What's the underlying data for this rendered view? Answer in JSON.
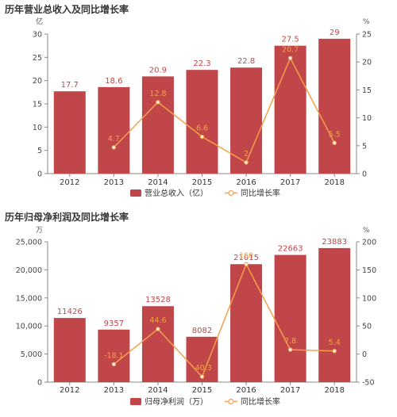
{
  "colors": {
    "bar": "#c0464a",
    "line": "#f5a04b",
    "bar_label": "#c0464a",
    "line_label": "#f5a04b",
    "axis": "#888888",
    "title": "#333333"
  },
  "chart_data": [
    {
      "type": "bar",
      "title": "历年营业总收入及同比增长率",
      "left_unit": "亿",
      "right_unit": "%",
      "categories": [
        "2012",
        "2013",
        "2014",
        "2015",
        "2016",
        "2017",
        "2018"
      ],
      "ylim_left": [
        0,
        30
      ],
      "yticks_left": [
        "0",
        "5",
        "10",
        "15",
        "20",
        "25",
        "30"
      ],
      "ylim_right": [
        0,
        25
      ],
      "yticks_right": [
        "0",
        "5",
        "10",
        "15",
        "20",
        "25"
      ],
      "series": [
        {
          "name": "营业总收入（亿）",
          "kind": "bar",
          "axis": "left",
          "values": [
            17.7,
            18.6,
            20.9,
            22.3,
            22.8,
            27.5,
            29
          ]
        },
        {
          "name": "同比增长率",
          "kind": "line",
          "axis": "right",
          "values": [
            null,
            4.7,
            12.8,
            6.6,
            2,
            20.7,
            5.5
          ]
        }
      ],
      "bar_labels": [
        "17.7",
        "18.6",
        "20.9",
        "22.3",
        "22.8",
        "27.5",
        "29"
      ],
      "line_labels": [
        "",
        "4.7",
        "12.8",
        "6.6",
        "2",
        "20.7",
        "5.5"
      ],
      "legend": "bottom"
    },
    {
      "type": "bar",
      "title": "历年归母净利润及同比增长率",
      "left_unit": "万",
      "right_unit": "%",
      "categories": [
        "2012",
        "2013",
        "2014",
        "2015",
        "2016",
        "2017",
        "2018"
      ],
      "ylim_left": [
        0,
        25000
      ],
      "yticks_left": [
        "0",
        "5,000",
        "10,000",
        "15,000",
        "20,000",
        "25,000"
      ],
      "ylim_right": [
        -50,
        200
      ],
      "yticks_right": [
        "-50",
        "0",
        "50",
        "100",
        "150",
        "200"
      ],
      "series": [
        {
          "name": "归母净利润（万）",
          "kind": "bar",
          "axis": "left",
          "values": [
            11426,
            9357,
            13528,
            8082,
            21015,
            22663,
            23883
          ]
        },
        {
          "name": "同比增长率",
          "kind": "line",
          "axis": "right",
          "values": [
            null,
            -18.1,
            44.6,
            -40.3,
            160,
            7.8,
            5.4
          ]
        }
      ],
      "bar_labels": [
        "11426",
        "9357",
        "13528",
        "8082",
        "21015",
        "22663",
        "23883"
      ],
      "line_labels": [
        "",
        "-18.1",
        "44.6",
        "-40.3",
        "160",
        "7.8",
        "5.4"
      ],
      "legend": "bottom"
    }
  ]
}
